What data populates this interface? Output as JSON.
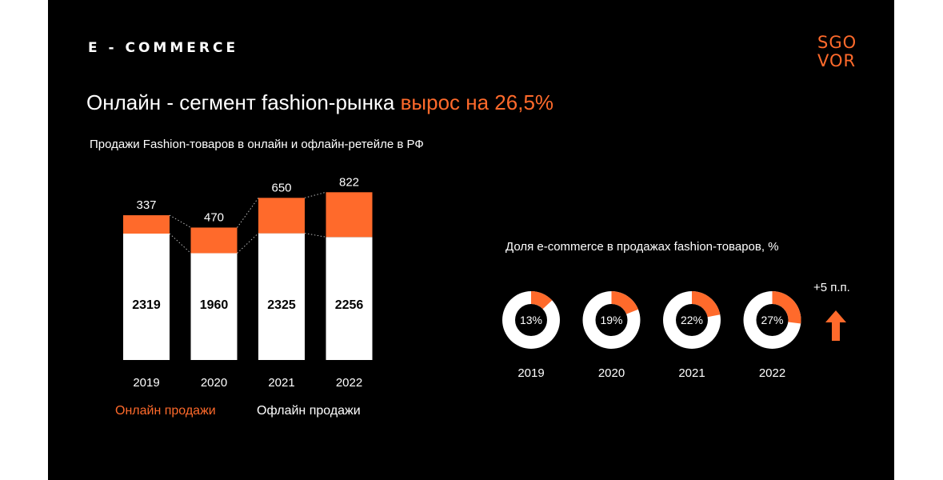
{
  "header": {
    "section": "E - COMMERCE",
    "logo_line1": "SGO",
    "logo_line2": "VOR"
  },
  "headline": {
    "main": "Онлайн - сегмент fashion-рынка ",
    "accent": "вырос на 26,5%"
  },
  "colors": {
    "accent": "#ff6a2b",
    "offline": "#ffffff",
    "background": "#000000"
  },
  "chart_data": [
    {
      "type": "bar",
      "stacked": true,
      "title": "Продажи Fashion-товаров в онлайн и офлайн-ретейле в РФ",
      "categories": [
        "2019",
        "2020",
        "2021",
        "2022"
      ],
      "series": [
        {
          "name": "Офлайн продажи",
          "values": [
            2319,
            1960,
            2325,
            2256
          ],
          "color": "#ffffff"
        },
        {
          "name": "Онлайн продажи",
          "values": [
            337,
            470,
            650,
            822
          ],
          "color": "#ff6a2b"
        }
      ],
      "legend": [
        "Онлайн продажи",
        "Офлайн продажи"
      ]
    },
    {
      "type": "pie",
      "title": "Доля e-commerce в продажах fashion-товаров, %",
      "categories": [
        "2019",
        "2020",
        "2021",
        "2022"
      ],
      "values": [
        13,
        19,
        22,
        27
      ],
      "labels": [
        "13%",
        "19%",
        "22%",
        "27%"
      ],
      "annotation": "+5 п.п."
    }
  ]
}
